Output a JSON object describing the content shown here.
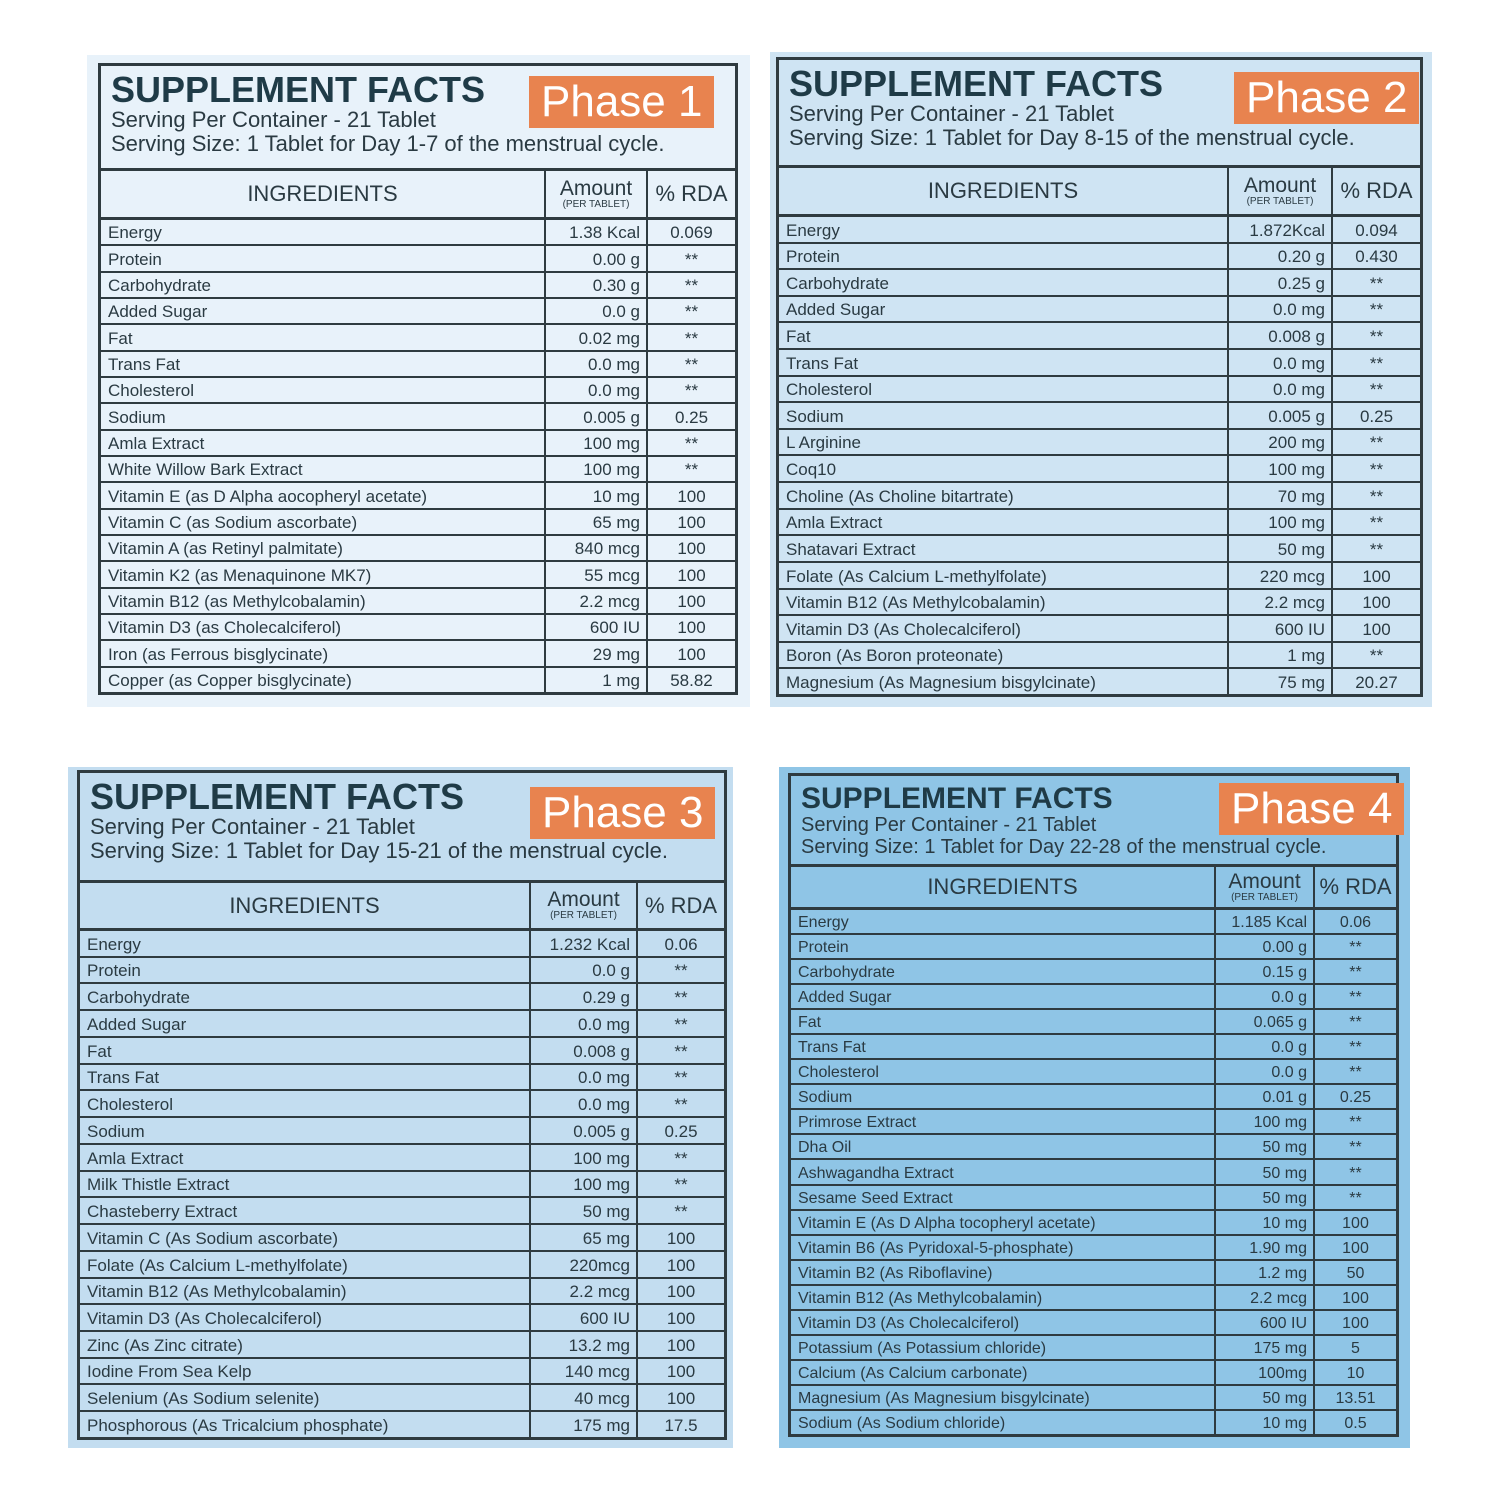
{
  "panels": [
    {
      "title": "SUPPLEMENT FACTS",
      "phase": "Phase 1",
      "serving_per_container": "Serving Per Container - 21 Tablet",
      "serving_size": "Serving Size: 1 Tablet for Day 1-7 of the menstrual cycle.",
      "headers": {
        "ingredients": "INGREDIENTS",
        "amount": "Amount",
        "per": "(PER TABLET)",
        "rda": "% RDA"
      },
      "rows": [
        [
          "Energy",
          "1.38 Kcal",
          "0.069"
        ],
        [
          "Protein",
          "0.00 g",
          "**"
        ],
        [
          "Carbohydrate",
          "0.30 g",
          "**"
        ],
        [
          "Added Sugar",
          "0.0 g",
          "**"
        ],
        [
          "Fat",
          "0.02 mg",
          "**"
        ],
        [
          "Trans Fat",
          "0.0 mg",
          "**"
        ],
        [
          "Cholesterol",
          "0.0 mg",
          "**"
        ],
        [
          "Sodium",
          "0.005 g",
          "0.25"
        ],
        [
          "Amla Extract",
          "100 mg",
          "**"
        ],
        [
          "White Willow Bark Extract",
          "100 mg",
          "**"
        ],
        [
          "Vitamin E (as D Alpha aocopheryl acetate)",
          "10 mg",
          "100"
        ],
        [
          "Vitamin C (as Sodium ascorbate)",
          "65 mg",
          "100"
        ],
        [
          "Vitamin A (as Retinyl palmitate)",
          "840 mcg",
          "100"
        ],
        [
          "Vitamin K2 (as Menaquinone MK7)",
          "55 mcg",
          "100"
        ],
        [
          "Vitamin B12 (as Methylcobalamin)",
          "2.2 mcg",
          "100"
        ],
        [
          "Vitamin D3 (as Cholecalciferol)",
          "600 IU",
          "100"
        ],
        [
          "Iron (as Ferrous bisglycinate)",
          "29 mg",
          "100"
        ],
        [
          "Copper (as Copper bisglycinate)",
          "1 mg",
          "58.82"
        ]
      ]
    },
    {
      "title": "SUPPLEMENT FACTS",
      "phase": "Phase 2",
      "serving_per_container": "Serving Per Container - 21 Tablet",
      "serving_size": "Serving Size: 1 Tablet for Day 8-15 of the menstrual cycle.",
      "headers": {
        "ingredients": "INGREDIENTS",
        "amount": "Amount",
        "per": "(PER TABLET)",
        "rda": "% RDA"
      },
      "rows": [
        [
          "Energy",
          "1.872Kcal",
          "0.094"
        ],
        [
          "Protein",
          "0.20 g",
          "0.430"
        ],
        [
          "Carbohydrate",
          "0.25 g",
          "**"
        ],
        [
          "Added Sugar",
          "0.0 mg",
          "**"
        ],
        [
          "Fat",
          "0.008 g",
          "**"
        ],
        [
          "Trans Fat",
          "0.0 mg",
          "**"
        ],
        [
          "Cholesterol",
          "0.0 mg",
          "**"
        ],
        [
          "Sodium",
          "0.005 g",
          "0.25"
        ],
        [
          "L Arginine",
          "200 mg",
          "**"
        ],
        [
          "Coq10",
          "100 mg",
          "**"
        ],
        [
          "Choline (As Choline bitartrate)",
          "70 mg",
          "**"
        ],
        [
          "Amla Extract",
          "100 mg",
          "**"
        ],
        [
          "Shatavari Extract",
          "50 mg",
          "**"
        ],
        [
          "Folate (As Calcium L-methylfolate)",
          "220 mcg",
          "100"
        ],
        [
          "Vitamin B12 (As Methylcobalamin)",
          "2.2 mcg",
          "100"
        ],
        [
          "Vitamin D3 (As Cholecalciferol)",
          "600 IU",
          "100"
        ],
        [
          "Boron (As Boron proteonate)",
          "1 mg",
          "**"
        ],
        [
          "Magnesium (As Magnesium bisgylcinate)",
          "75 mg",
          "20.27"
        ]
      ]
    },
    {
      "title": "SUPPLEMENT FACTS",
      "phase": "Phase 3",
      "serving_per_container": "Serving Per Container - 21 Tablet",
      "serving_size": "Serving Size: 1 Tablet for Day 15-21 of the menstrual cycle.",
      "headers": {
        "ingredients": "INGREDIENTS",
        "amount": "Amount",
        "per": "(PER TABLET)",
        "rda": "% RDA"
      },
      "rows": [
        [
          "Energy",
          "1.232 Kcal",
          "0.06"
        ],
        [
          "Protein",
          "0.0 g",
          "**"
        ],
        [
          "Carbohydrate",
          "0.29 g",
          "**"
        ],
        [
          "Added Sugar",
          "0.0 mg",
          "**"
        ],
        [
          "Fat",
          "0.008 g",
          "**"
        ],
        [
          "Trans Fat",
          "0.0 mg",
          "**"
        ],
        [
          "Cholesterol",
          "0.0 mg",
          "**"
        ],
        [
          "Sodium",
          "0.005 g",
          "0.25"
        ],
        [
          "Amla Extract",
          "100 mg",
          "**"
        ],
        [
          "Milk Thistle Extract",
          "100 mg",
          "**"
        ],
        [
          "Chasteberry Extract",
          "50 mg",
          "**"
        ],
        [
          "Vitamin C (As Sodium ascorbate)",
          "65 mg",
          "100"
        ],
        [
          "Folate (As Calcium L-methylfolate)",
          "220mcg",
          "100"
        ],
        [
          "Vitamin B12 (As Methylcobalamin)",
          "2.2 mcg",
          "100"
        ],
        [
          "Vitamin D3 (As Cholecalciferol)",
          "600 IU",
          "100"
        ],
        [
          "Zinc (As Zinc citrate)",
          "13.2 mg",
          "100"
        ],
        [
          "Iodine From Sea Kelp",
          "140 mcg",
          "100"
        ],
        [
          "Selenium (As Sodium selenite)",
          "40 mcg",
          "100"
        ],
        [
          "Phosphorous (As Tricalcium phosphate)",
          "175 mg",
          "17.5"
        ]
      ]
    },
    {
      "title": "SUPPLEMENT FACTS",
      "phase": "Phase 4",
      "serving_per_container": "Serving Per Container - 21 Tablet",
      "serving_size": "Serving Size: 1 Tablet for Day 22-28 of the menstrual cycle.",
      "headers": {
        "ingredients": "INGREDIENTS",
        "amount": "Amount",
        "per": "(PER TABLET)",
        "rda": "% RDA"
      },
      "rows": [
        [
          "Energy",
          "1.185 Kcal",
          "0.06"
        ],
        [
          "Protein",
          "0.00 g",
          "**"
        ],
        [
          "Carbohydrate",
          "0.15 g",
          "**"
        ],
        [
          "Added Sugar",
          "0.0 g",
          "**"
        ],
        [
          "Fat",
          "0.065 g",
          "**"
        ],
        [
          "Trans Fat",
          "0.0 g",
          "**"
        ],
        [
          "Cholesterol",
          "0.0 g",
          "**"
        ],
        [
          "Sodium",
          "0.01 g",
          "0.25"
        ],
        [
          "Primrose Extract",
          "100 mg",
          "**"
        ],
        [
          "Dha Oil",
          "50 mg",
          "**"
        ],
        [
          "Ashwagandha Extract",
          "50 mg",
          "**"
        ],
        [
          "Sesame Seed Extract",
          "50 mg",
          "**"
        ],
        [
          "Vitamin E (As D Alpha tocopheryl acetate)",
          "10 mg",
          "100"
        ],
        [
          "Vitamin B6 (As Pyridoxal-5-phosphate)",
          "1.90 mg",
          "100"
        ],
        [
          "Vitamin B2 (As Riboflavine)",
          "1.2 mg",
          "50"
        ],
        [
          "Vitamin B12 (As Methylcobalamin)",
          "2.2 mcg",
          "100"
        ],
        [
          "Vitamin D3 (As Cholecalciferol)",
          "600 IU",
          "100"
        ],
        [
          "Potassium (As Potassium chloride)",
          "175 mg",
          "5"
        ],
        [
          "Calcium (As Calcium carbonate)",
          "100mg",
          "10"
        ],
        [
          "Magnesium (As Magnesium bisgylcinate)",
          "50 mg",
          "13.51"
        ],
        [
          "Sodium (As Sodium chloride)",
          "10 mg",
          "0.5"
        ]
      ]
    }
  ]
}
